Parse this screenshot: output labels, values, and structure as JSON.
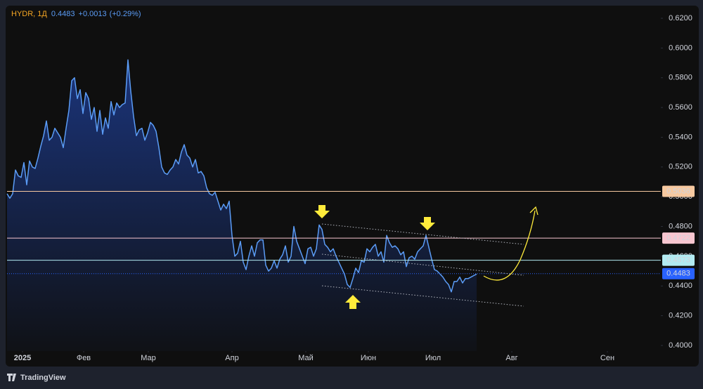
{
  "chart_data": {
    "type": "area",
    "header": {
      "symbol": "HYDR, 1Д",
      "last": "0.4483",
      "change": "+0.0013",
      "change_pct": "(+0.29%)"
    },
    "values": [
      0.502,
      0.499,
      0.502,
      0.518,
      0.514,
      0.513,
      0.523,
      0.508,
      0.524,
      0.52,
      0.519,
      0.526,
      0.534,
      0.541,
      0.551,
      0.538,
      0.54,
      0.546,
      0.543,
      0.54,
      0.533,
      0.546,
      0.558,
      0.578,
      0.58,
      0.566,
      0.572,
      0.556,
      0.57,
      0.566,
      0.552,
      0.56,
      0.544,
      0.558,
      0.542,
      0.553,
      0.546,
      0.564,
      0.555,
      0.563,
      0.56,
      0.562,
      0.563,
      0.592,
      0.571,
      0.554,
      0.541,
      0.545,
      0.546,
      0.538,
      0.543,
      0.55,
      0.548,
      0.544,
      0.533,
      0.52,
      0.516,
      0.515,
      0.518,
      0.52,
      0.525,
      0.522,
      0.53,
      0.535,
      0.528,
      0.526,
      0.52,
      0.525,
      0.516,
      0.517,
      0.514,
      0.506,
      0.502,
      0.501,
      0.503,
      0.497,
      0.491,
      0.495,
      0.492,
      0.497,
      0.474,
      0.46,
      0.462,
      0.47,
      0.456,
      0.451,
      0.46,
      0.467,
      0.46,
      0.469,
      0.471,
      0.471,
      0.454,
      0.45,
      0.452,
      0.457,
      0.452,
      0.458,
      0.461,
      0.467,
      0.456,
      0.46,
      0.48,
      0.47,
      0.465,
      0.46,
      0.455,
      0.465,
      0.466,
      0.46,
      0.465,
      0.481,
      0.478,
      0.468,
      0.466,
      0.463,
      0.465,
      0.46,
      0.456,
      0.452,
      0.448,
      0.441,
      0.439,
      0.445,
      0.452,
      0.449,
      0.457,
      0.456,
      0.465,
      0.463,
      0.466,
      0.468,
      0.46,
      0.463,
      0.456,
      0.474,
      0.469,
      0.466,
      0.467,
      0.465,
      0.461,
      0.463,
      0.453,
      0.459,
      0.46,
      0.458,
      0.463,
      0.465,
      0.467,
      0.474,
      0.466,
      0.458,
      0.451,
      0.45,
      0.448,
      0.446,
      0.443,
      0.441,
      0.436,
      0.443,
      0.443,
      0.446,
      0.442,
      0.445,
      0.445,
      0.446,
      0.447,
      0.448
    ],
    "color": "#5b9cf6",
    "xlim": [
      0,
      232.5
    ],
    "xticks": [
      {
        "value": 5.5,
        "label": "2025"
      },
      {
        "value": 27.25,
        "label": "Фев"
      },
      {
        "value": 50.25,
        "label": "Мар"
      },
      {
        "value": 80,
        "label": "Апр"
      },
      {
        "value": 106.25,
        "label": "Май"
      },
      {
        "value": 128.5,
        "label": "Июн"
      },
      {
        "value": 151.5,
        "label": "Июл"
      },
      {
        "value": 179.5,
        "label": "Авг"
      },
      {
        "value": 213.5,
        "label": "Сен"
      }
    ],
    "ylim": [
      0.4,
      0.62
    ],
    "yticks": [
      {
        "value": 0.62,
        "label": "0.6200"
      },
      {
        "value": 0.6,
        "label": "0.6000"
      },
      {
        "value": 0.58,
        "label": "0.5800"
      },
      {
        "value": 0.56,
        "label": "0.5600"
      },
      {
        "value": 0.54,
        "label": "0.5400"
      },
      {
        "value": 0.52,
        "label": "0.5200"
      },
      {
        "value": 0.5,
        "label": "0.5000"
      },
      {
        "value": 0.48,
        "label": "0.4800"
      },
      {
        "value": 0.46,
        "label": "0.4600"
      },
      {
        "value": 0.44,
        "label": "0.4400"
      },
      {
        "value": 0.42,
        "label": "0.4200"
      },
      {
        "value": 0.4,
        "label": "0.4000"
      }
    ],
    "levels": [
      {
        "value": 0.5036,
        "color": "#f7c9a0"
      },
      {
        "value": 0.4722,
        "color": "#f8c6d0"
      },
      {
        "value": 0.4573,
        "color": "#b2ebf2"
      }
    ],
    "last_price": 0.4483,
    "last_color": "#2962ff",
    "grid": false,
    "brand": "TradingView"
  }
}
